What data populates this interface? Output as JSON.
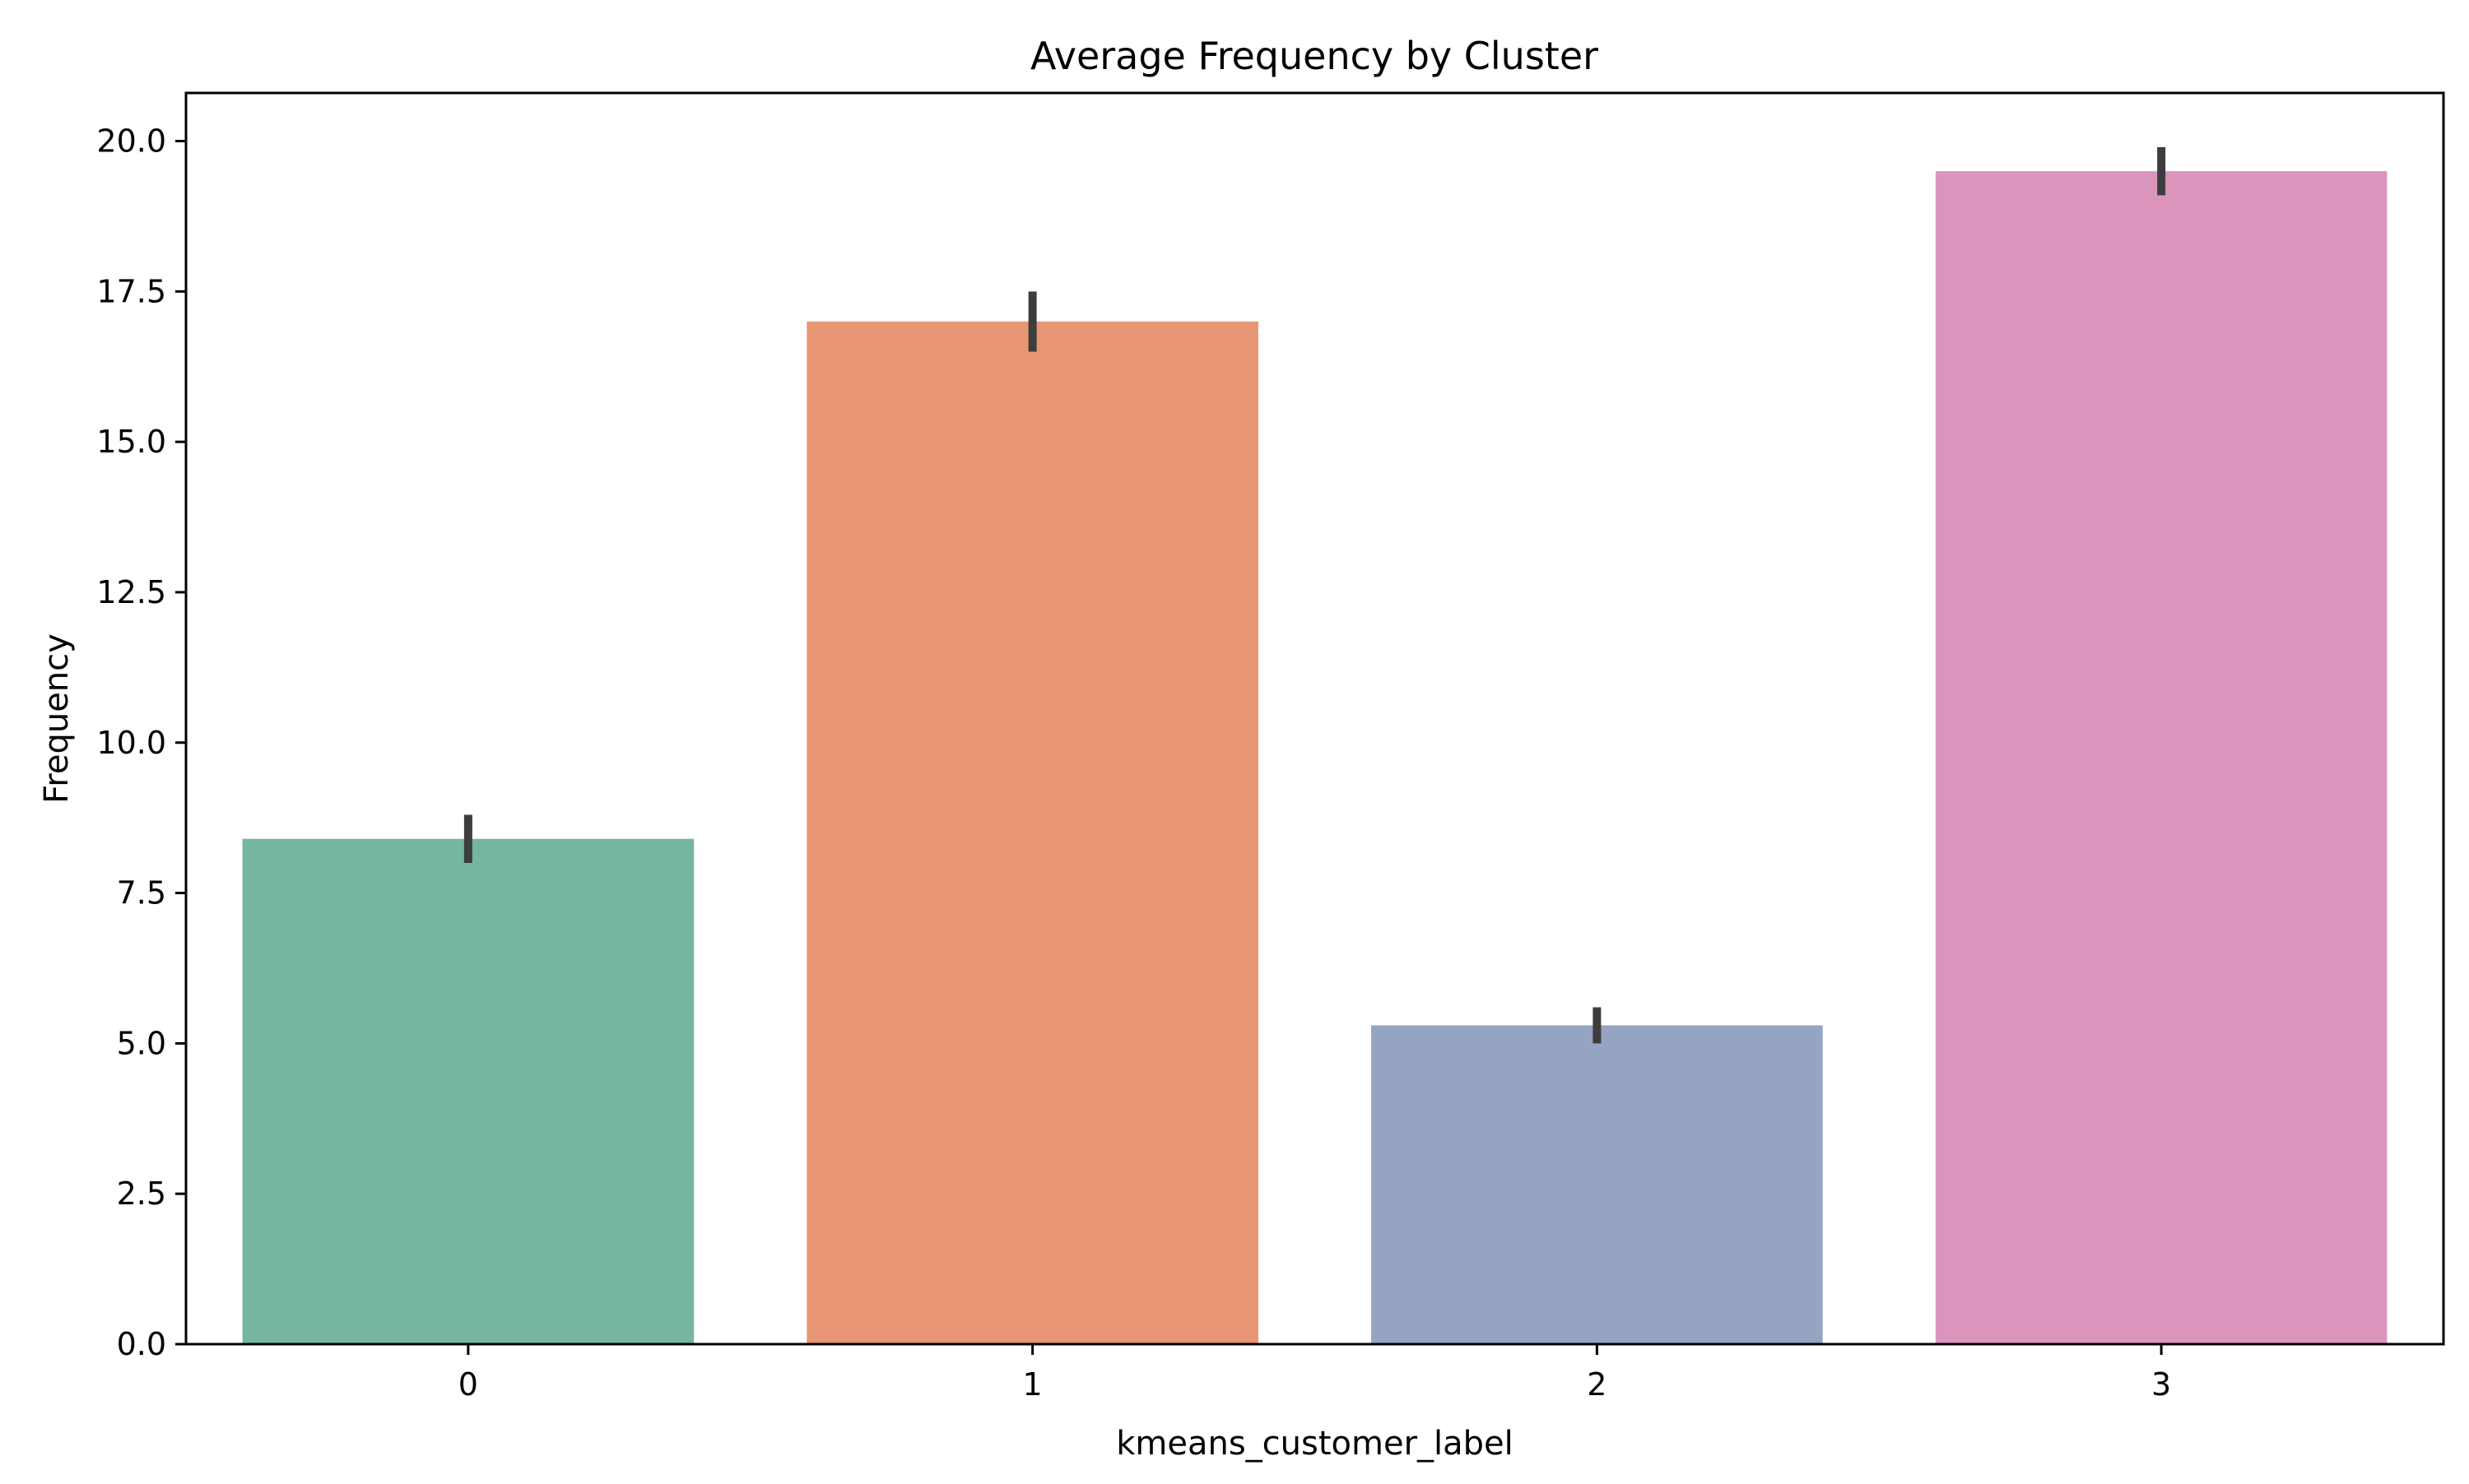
{
  "chart_data": {
    "type": "bar",
    "title": "Average Frequency by Cluster",
    "xlabel": "kmeans_customer_label",
    "ylabel": "Frequency",
    "categories": [
      "0",
      "1",
      "2",
      "3"
    ],
    "values": [
      8.4,
      17.0,
      5.3,
      19.5
    ],
    "error_low": [
      8.0,
      16.5,
      5.0,
      19.1
    ],
    "error_high": [
      8.8,
      17.5,
      5.6,
      19.9
    ],
    "colors": [
      "#74b6a0",
      "#e89673",
      "#95a4c2",
      "#db95bd"
    ],
    "error_color": "#3d3d3d",
    "ylim": [
      0,
      20.8
    ],
    "yticks": [
      0,
      2.5,
      5,
      7.5,
      10,
      12.5,
      15,
      17.5,
      20
    ],
    "ytick_labels": [
      "0.0",
      "2.5",
      "5.0",
      "7.5",
      "10.0",
      "12.5",
      "15.0",
      "17.5",
      "20.0"
    ],
    "grid": false,
    "legend": "none"
  }
}
